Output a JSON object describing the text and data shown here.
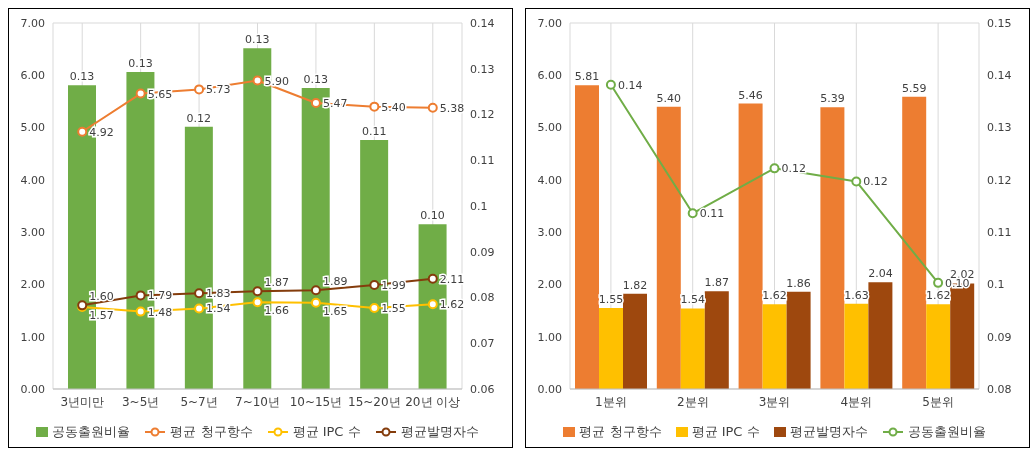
{
  "chart_data": [
    {
      "type": "bar",
      "categories": [
        "3년미만",
        "3~5년",
        "5~7년",
        "7~10년",
        "10~15년",
        "15~20년",
        "20년 이상"
      ],
      "series": [
        {
          "name": "공동출원비율",
          "axis": "y2",
          "color": "#70ad47",
          "values": [
            0.1264,
            0.1293,
            0.1173,
            0.1345,
            0.1258,
            0.1144,
            0.096
          ],
          "value_labels": [
            "0.13",
            "0.13",
            "0.12",
            "0.13",
            "0.13",
            "0.11",
            "0.10"
          ]
        },
        {
          "name": "평균 청구항수",
          "type": "line",
          "color": "#ed7d31",
          "values": [
            4.92,
            5.65,
            5.73,
            5.9,
            5.47,
            5.4,
            5.38
          ],
          "value_labels": [
            "4.92",
            "5.65",
            "5.73",
            "5.90",
            "5.47",
            "5.40",
            "5.38"
          ]
        },
        {
          "name": "평균 IPC 수",
          "type": "line",
          "color": "#ffc000",
          "values": [
            1.57,
            1.48,
            1.54,
            1.66,
            1.65,
            1.55,
            1.62
          ],
          "value_labels": [
            "1.57",
            "1.48",
            "1.54",
            "1.66",
            "1.65",
            "1.55",
            "1.62"
          ]
        },
        {
          "name": "평균발명자수",
          "type": "line",
          "color": "#843c0c",
          "values": [
            1.6,
            1.79,
            1.83,
            1.87,
            1.89,
            1.99,
            2.11
          ],
          "value_labels": [
            "1.60",
            "1.79",
            "1.83",
            "1.87",
            "1.89",
            "1.99",
            "2.11"
          ]
        }
      ],
      "ylim": [
        0,
        7
      ],
      "yticks": [
        {
          "value": 0,
          "label": "0.00"
        },
        {
          "value": 1,
          "label": "1.00"
        },
        {
          "value": 2,
          "label": "2.00"
        },
        {
          "value": 3,
          "label": "3.00"
        },
        {
          "value": 4,
          "label": "4.00"
        },
        {
          "value": 5,
          "label": "5.00"
        },
        {
          "value": 6,
          "label": "6.00"
        },
        {
          "value": 7,
          "label": "7.00"
        }
      ],
      "y2lim": [
        0.06,
        0.14
      ],
      "y2ticks": [
        0.06,
        0.07,
        0.08,
        0.09,
        0.1,
        0.11,
        0.12,
        0.13,
        0.14
      ],
      "grid": true,
      "legend": "bottom",
      "marker": "circle"
    },
    {
      "type": "bar",
      "categories": [
        "1분위",
        "2분위",
        "3분위",
        "4분위",
        "5분위"
      ],
      "series": [
        {
          "name": "평균 청구항수",
          "color": "#ed7d31",
          "values": [
            5.81,
            5.4,
            5.46,
            5.39,
            5.59
          ],
          "value_labels": [
            "5.81",
            "5.40",
            "5.46",
            "5.39",
            "5.59"
          ]
        },
        {
          "name": "평균 IPC 수",
          "color": "#ffc000",
          "values": [
            1.55,
            1.54,
            1.62,
            1.63,
            1.62
          ],
          "value_labels": [
            "1.55",
            "1.54",
            "1.62",
            "1.63",
            "1.62"
          ]
        },
        {
          "name": "평균발명자수",
          "color": "#9e480e",
          "values": [
            1.82,
            1.87,
            1.86,
            2.04,
            2.02
          ],
          "value_labels": [
            "1.82",
            "1.87",
            "1.86",
            "2.04",
            "2.02"
          ]
        },
        {
          "name": "공동출원비율",
          "type": "line",
          "axis": "y2",
          "color": "#70ad47",
          "values": [
            0.1382,
            0.1136,
            0.1222,
            0.1197,
            0.1003
          ],
          "value_labels": [
            "0.14",
            "0.11",
            "0.12",
            "0.12",
            "0.10"
          ]
        }
      ],
      "ylim": [
        0,
        7
      ],
      "yticks": [
        {
          "value": 0,
          "label": "0.00"
        },
        {
          "value": 1,
          "label": "1.00"
        },
        {
          "value": 2,
          "label": "2.00"
        },
        {
          "value": 3,
          "label": "3.00"
        },
        {
          "value": 4,
          "label": "4.00"
        },
        {
          "value": 5,
          "label": "5.00"
        },
        {
          "value": 6,
          "label": "6.00"
        },
        {
          "value": 7,
          "label": "7.00"
        }
      ],
      "y2lim": [
        0.08,
        0.15
      ],
      "y2ticks": [
        0.08,
        0.09,
        0.1,
        0.11,
        0.12,
        0.13,
        0.14,
        0.15
      ],
      "grid": true,
      "legend": "bottom",
      "marker": "circle"
    }
  ]
}
